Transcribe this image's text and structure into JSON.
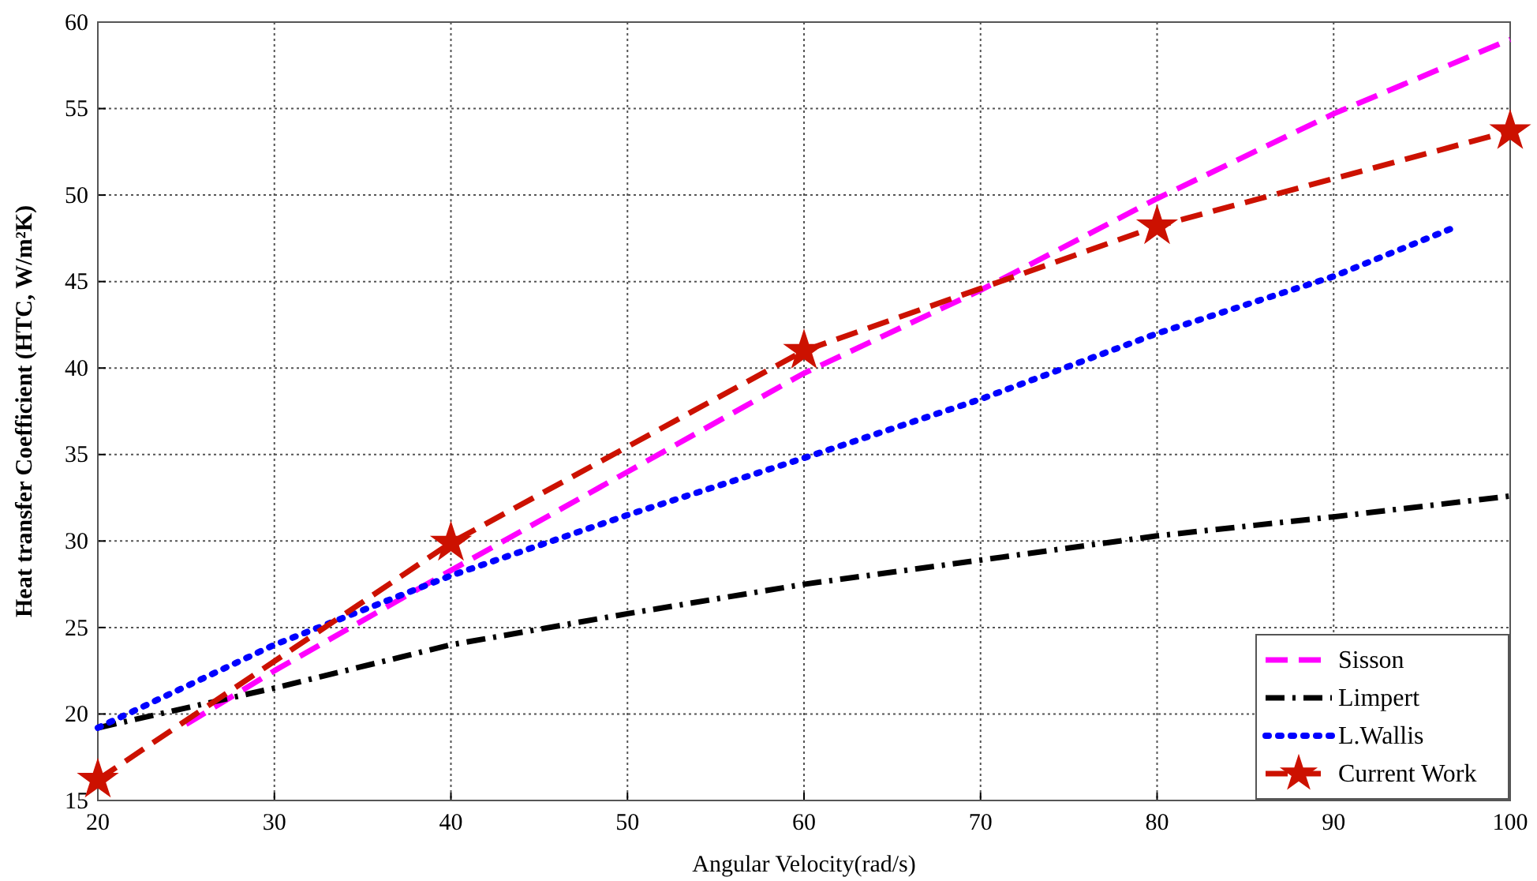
{
  "chart_data": {
    "type": "line",
    "xlabel": "Angular Velocity(rad/s)",
    "ylabel": "Heat transfer Coefficient (HTC, W/m²K)",
    "xlim": [
      20,
      100
    ],
    "xticks": [
      20,
      30,
      40,
      50,
      60,
      70,
      80,
      90,
      100
    ],
    "ylim": [
      15,
      60
    ],
    "yticks": [
      15,
      20,
      25,
      30,
      35,
      40,
      45,
      50,
      55,
      60
    ],
    "grid": true,
    "legend": "bottom right",
    "series": [
      {
        "name": "Sisson",
        "color": "#ff00ff",
        "line_style": "dashed",
        "marker": "none",
        "x": [
          25,
          30,
          40,
          50,
          60,
          70,
          80,
          90,
          100
        ],
        "values": [
          19.4,
          22.5,
          28.3,
          34,
          39.7,
          44.5,
          49.8,
          54.7,
          59
        ]
      },
      {
        "name": "Limpert",
        "color": "#000000",
        "line_style": "dashdot",
        "marker": "none",
        "x": [
          20,
          30,
          40,
          50,
          60,
          70,
          80,
          90,
          100
        ],
        "values": [
          19.2,
          21.5,
          24,
          25.8,
          27.5,
          28.9,
          30.3,
          31.4,
          32.6
        ]
      },
      {
        "name": "L.Wallis",
        "color": "#0000ff",
        "line_style": "dotted",
        "marker": "none",
        "x": [
          20,
          30,
          40,
          50,
          60,
          70,
          80,
          90,
          97
        ],
        "values": [
          19.2,
          24,
          28,
          31.5,
          34.8,
          38.2,
          42,
          45.3,
          48.2
        ]
      },
      {
        "name": "Current Work",
        "color": "#cc1100",
        "line_style": "dashed",
        "marker": "star",
        "x": [
          20,
          40,
          60,
          80,
          100
        ],
        "values": [
          16.2,
          29.9,
          41,
          48.2,
          53.7
        ]
      }
    ]
  }
}
